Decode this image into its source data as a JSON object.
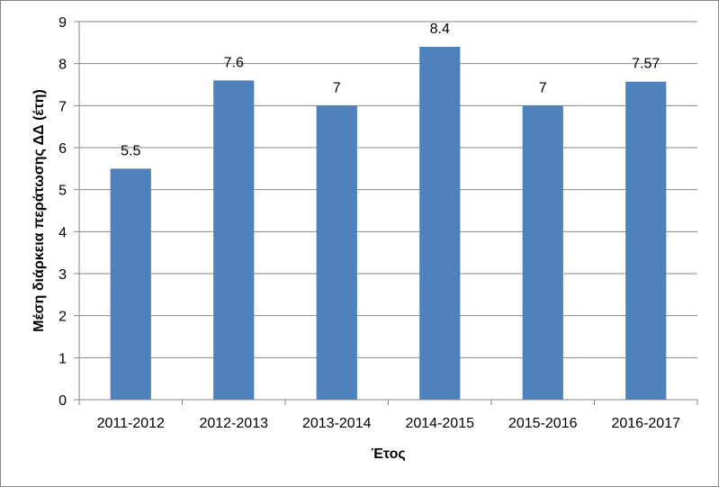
{
  "chart_data": {
    "type": "bar",
    "title": "",
    "xlabel": "Έτος",
    "ylabel": "Μέση διάρκεια περάτωσης ΔΔ  (έτη)",
    "categories": [
      "2011-2012",
      "2012-2013",
      "2013-2014",
      "2014-2015",
      "2015-2016",
      "2016-2017"
    ],
    "values": [
      5.5,
      7.6,
      7,
      8.4,
      7,
      7.57
    ],
    "data_labels": [
      "5.5",
      "7.6",
      "7",
      "8.4",
      "7",
      "7.57"
    ],
    "ylim": [
      0,
      9
    ],
    "yticks": [
      0,
      1,
      2,
      3,
      4,
      5,
      6,
      7,
      8,
      9
    ],
    "grid": true,
    "legend": "none",
    "bar_color": "#4f81bd",
    "grid_color": "#868686"
  }
}
